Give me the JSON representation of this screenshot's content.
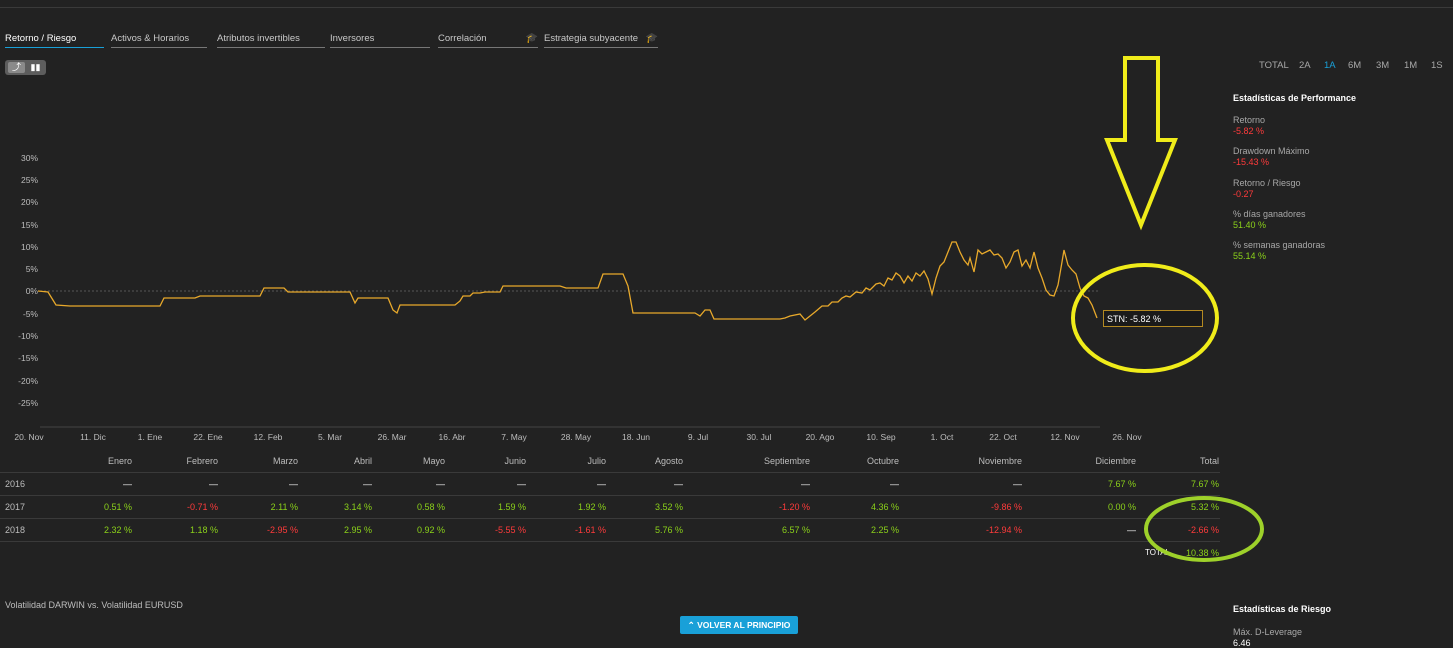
{
  "tabs": [
    {
      "label": "Retorno / Riesgo"
    },
    {
      "label": "Activos & Horarios"
    },
    {
      "label": "Atributos invertibles"
    },
    {
      "label": "Inversores"
    },
    {
      "label": "Correlación"
    },
    {
      "label": "Estrategia subyacente"
    }
  ],
  "periods": [
    "TOTAL",
    "2A",
    "1A",
    "6M",
    "3M",
    "1M",
    "1S"
  ],
  "active_period": "1A",
  "perf": {
    "title": "Estadísticas de Performance",
    "items": [
      {
        "label": "Retorno",
        "value": "-5.82 %"
      },
      {
        "label": "Drawdown Máximo",
        "value": "-15.43 %"
      },
      {
        "label": "Retorno / Riesgo",
        "value": "-0.27"
      },
      {
        "label": "% días ganadores",
        "value": "51.40 %"
      },
      {
        "label": "% semanas ganadoras",
        "value": "55.14 %"
      }
    ]
  },
  "tooltip": "STN: -5.82 %",
  "chart_data": {
    "type": "line",
    "series": [
      {
        "name": "STN",
        "x": [
          "20 Nov",
          "11 Dic",
          "1 Ene",
          "22 Ene",
          "12 Feb",
          "5 Mar",
          "26 Mar",
          "16 Abr",
          "7 May",
          "28 May",
          "18 Jun",
          "9 Jul",
          "30 Jul",
          "20 Ago",
          "10 Sep",
          "1 Oct",
          "22 Oct",
          "12 Nov",
          "26 Nov"
        ],
        "values": [
          0,
          -3,
          -3,
          -1,
          0,
          0,
          -2,
          -2,
          1,
          1,
          -5,
          -6,
          -6,
          -3,
          2,
          9,
          8,
          2,
          -5.82
        ]
      }
    ],
    "yticks": [
      "30%",
      "25%",
      "20%",
      "15%",
      "10%",
      "5%",
      "0%",
      "-5%",
      "-10%",
      "-15%",
      "-20%",
      "-25%"
    ],
    "xticks": [
      "20. Nov",
      "11. Dic",
      "1. Ene",
      "22. Ene",
      "12. Feb",
      "5. Mar",
      "26. Mar",
      "16. Abr",
      "7. May",
      "28. May",
      "18. Jun",
      "9. Jul",
      "30. Jul",
      "20. Ago",
      "10. Sep",
      "1. Oct",
      "22. Oct",
      "12. Nov",
      "26. Nov"
    ],
    "ylim": [
      -25,
      30
    ],
    "color": "#e8a92b"
  },
  "table": {
    "headers": [
      "Enero",
      "Febrero",
      "Marzo",
      "Abril",
      "Mayo",
      "Junio",
      "Julio",
      "Agosto",
      "Septiembre",
      "Octubre",
      "Noviembre",
      "Diciembre",
      "Total"
    ],
    "rows": [
      {
        "year": "2016",
        "cells": [
          "—",
          "—",
          "—",
          "—",
          "—",
          "—",
          "—",
          "—",
          "—",
          "—",
          "—",
          "7.67 %",
          "7.67 %"
        ]
      },
      {
        "year": "2017",
        "cells": [
          "0.51 %",
          "-0.71 %",
          "2.11 %",
          "3.14 %",
          "0.58 %",
          "1.59 %",
          "1.92 %",
          "3.52 %",
          "-1.20 %",
          "4.36 %",
          "-9.86 %",
          "0.00 %",
          "5.32 %"
        ]
      },
      {
        "year": "2018",
        "cells": [
          "2.32 %",
          "1.18 %",
          "-2.95 %",
          "2.95 %",
          "0.92 %",
          "-5.55 %",
          "-1.61 %",
          "5.76 %",
          "6.57 %",
          "2.25 %",
          "-12.94 %",
          "—",
          "-2.66 %"
        ]
      }
    ],
    "total_label": "TOTAL",
    "total_value": "10.38 %"
  },
  "volatility_label": "Volatilidad DARWIN vs. Volatilidad EURUSD",
  "back_button": "VOLVER AL PRINCIPIO",
  "risk": {
    "title": "Estadísticas de Riesgo",
    "label": "Máx. D-Leverage",
    "value": "6.46"
  }
}
